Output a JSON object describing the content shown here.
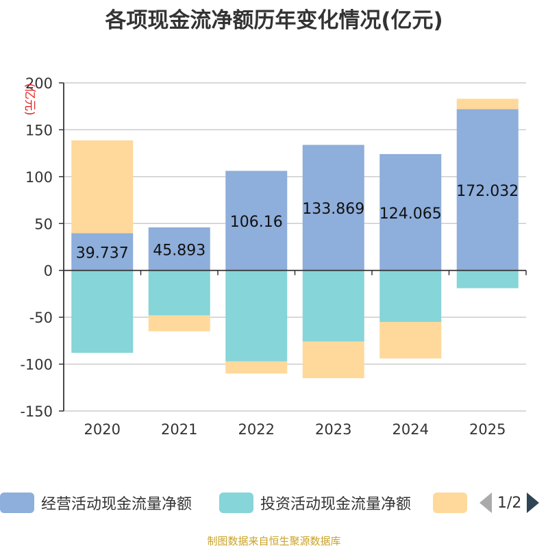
{
  "chart_data": {
    "type": "bar",
    "stacked": true,
    "title": "各项现金流净额历年变化情况(亿元)",
    "ylabel": "(亿元)",
    "xlabel": "",
    "categories": [
      "2020",
      "2021",
      "2022",
      "2023",
      "2024",
      "2025"
    ],
    "ylim": [
      -150,
      200
    ],
    "yticks": [
      200,
      150,
      100,
      50,
      0,
      -50,
      -100,
      -150
    ],
    "grid": true,
    "series": [
      {
        "name": "经营活动现金流量净额",
        "color": "#8eaedb",
        "values": [
          39.737,
          45.893,
          106.16,
          133.869,
          124.065,
          172.032
        ],
        "labels": [
          "39.737",
          "45.893",
          "106.16",
          "133.869",
          "124.065",
          "172.032"
        ]
      },
      {
        "name": "投资活动现金流量净额",
        "color": "#86d5d8",
        "values": [
          -88,
          -48,
          -97,
          -76,
          -55,
          -19
        ]
      },
      {
        "name": "",
        "color": "#fed99b",
        "values": [
          99,
          -17,
          -13,
          -39,
          -39,
          11
        ]
      }
    ],
    "legend_position": "bottom"
  },
  "pager": {
    "page_label": "1/2"
  },
  "source": "制图数据来自恒生聚源数据库"
}
